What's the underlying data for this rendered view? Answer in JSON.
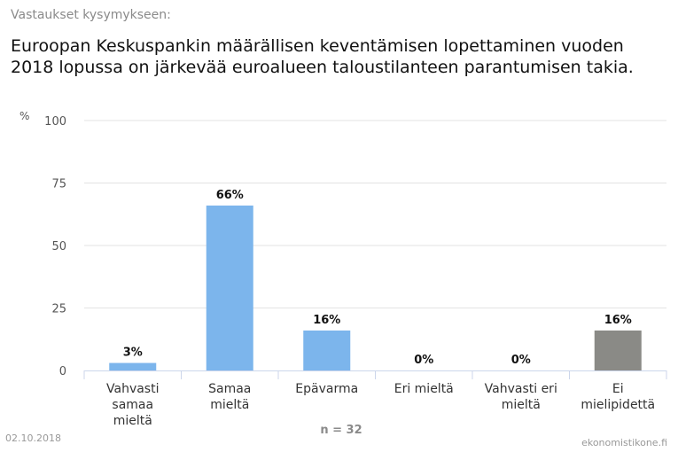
{
  "header": {
    "subtitle": "Vastaukset kysymykseen:",
    "title": "Euroopan Keskuspankin määrällisen keventämisen lopettaminen vuoden 2018 lopussa on järkevää euroalueen taloustilanteen parantumisen takia."
  },
  "footer": {
    "date": "02.10.2018",
    "n": "n = 32",
    "source": "ekonomistikone.fi"
  },
  "chart_data": {
    "type": "bar",
    "ylabel": "%",
    "ylim": [
      0,
      100
    ],
    "yticks": [
      0,
      25,
      50,
      75,
      100
    ],
    "grid": true,
    "categories": [
      [
        "Vahvasti",
        "samaa",
        "mieltä"
      ],
      [
        "Samaa",
        "mieltä"
      ],
      [
        "Epävarma"
      ],
      [
        "Eri mieltä"
      ],
      [
        "Vahvasti eri",
        "mieltä"
      ],
      [
        "Ei",
        "mielipidettä"
      ]
    ],
    "values": [
      3,
      66,
      16,
      0,
      0,
      16
    ],
    "value_labels": [
      "3%",
      "66%",
      "16%",
      "0%",
      "0%",
      "16%"
    ],
    "colors": [
      "#7cb5ec",
      "#7cb5ec",
      "#7cb5ec",
      "#7cb5ec",
      "#7cb5ec",
      "#8a8a86"
    ]
  }
}
